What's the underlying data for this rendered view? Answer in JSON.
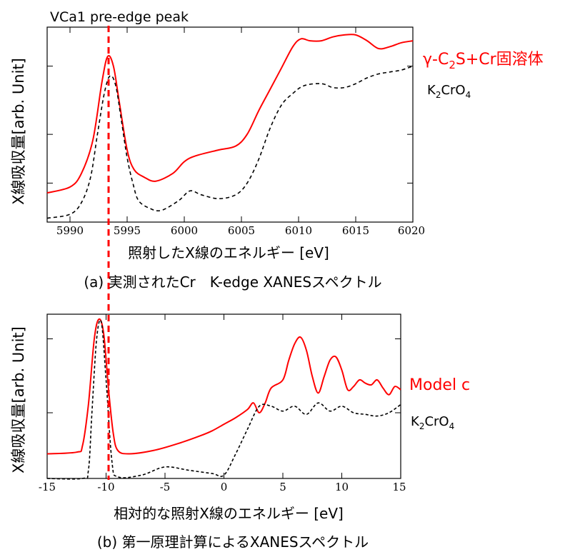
{
  "annotation": "VCa1 pre-edge peak",
  "chart_data": [
    {
      "type": "line",
      "caption": "(a) 実測されたCr　K-edge XANESスペクトル",
      "xlabel": "照射したX線のエネルギー [eV]",
      "ylabel": "X線吸収量[arb. Unit]",
      "xlim": [
        5988,
        6020
      ],
      "ylim": [
        0,
        1
      ],
      "xticks": [
        5990,
        5995,
        6000,
        6005,
        6010,
        6015,
        6020
      ],
      "grid": false,
      "series": [
        {
          "label_main": "γ-C",
          "label_sub": "2",
          "label_tail": "S+Cr固溶体",
          "color": "#ff0000",
          "style": "solid",
          "x": [
            5988,
            5990,
            5991,
            5992,
            5992.8,
            5993.3,
            5993.8,
            5994.3,
            5995,
            5995.6,
            5996.5,
            5997.5,
            5999,
            6000,
            6001,
            6003,
            6004.5,
            6005.5,
            6006.5,
            6007.5,
            6008.5,
            6009.5,
            6010.2,
            6011,
            6012,
            6013,
            6014,
            6015,
            6016,
            6017,
            6018,
            6019,
            6020
          ],
          "y": [
            0.15,
            0.18,
            0.25,
            0.42,
            0.72,
            0.85,
            0.8,
            0.62,
            0.37,
            0.27,
            0.23,
            0.21,
            0.25,
            0.31,
            0.34,
            0.37,
            0.39,
            0.45,
            0.57,
            0.68,
            0.79,
            0.9,
            0.94,
            0.93,
            0.93,
            0.95,
            0.96,
            0.96,
            0.93,
            0.89,
            0.9,
            0.92,
            0.93
          ]
        },
        {
          "label_main": "K",
          "label_sub": "2",
          "label_tail": "CrO",
          "label_sub2": "4",
          "color": "#000000",
          "style": "dashed",
          "x": [
            5988,
            5990,
            5991,
            5991.8,
            5992.4,
            5993,
            5993.5,
            5994,
            5994.5,
            5995,
            5995.5,
            5996,
            5997,
            5998,
            5999.5,
            6000.5,
            6001.5,
            6003,
            6004.5,
            6005.5,
            6006.5,
            6007.5,
            6008.5,
            6009.5,
            6010.5,
            6012,
            6013,
            6014,
            6015,
            6016,
            6017,
            6018,
            6019,
            6020
          ],
          "y": [
            0.02,
            0.04,
            0.1,
            0.23,
            0.45,
            0.66,
            0.75,
            0.7,
            0.52,
            0.33,
            0.2,
            0.11,
            0.07,
            0.06,
            0.11,
            0.16,
            0.14,
            0.12,
            0.14,
            0.2,
            0.32,
            0.48,
            0.6,
            0.66,
            0.7,
            0.71,
            0.69,
            0.69,
            0.71,
            0.74,
            0.76,
            0.77,
            0.78,
            0.8
          ]
        }
      ]
    },
    {
      "type": "line",
      "caption": "(b) 第一原理計算によるXANESスペクトル",
      "xlabel": "相対的な照射X線のエネルギー [eV]",
      "ylabel": "X線吸収量[arb. Unit]",
      "xlim": [
        -15,
        15
      ],
      "ylim": [
        0,
        1
      ],
      "xticks": [
        -15,
        -10,
        -5,
        0,
        5,
        10,
        15
      ],
      "grid": false,
      "series": [
        {
          "label_main": "Model c",
          "color": "#ff0000",
          "style": "solid",
          "x": [
            -15,
            -12.5,
            -12,
            -11.5,
            -11,
            -10.6,
            -10.2,
            -9.8,
            -9.4,
            -9,
            -8,
            -6,
            -4,
            -2,
            -1,
            0,
            1,
            2,
            2.5,
            3,
            3.5,
            4,
            5,
            5.5,
            6,
            6.5,
            7,
            7.5,
            8,
            8.5,
            9,
            9.5,
            10,
            10.5,
            11,
            11.5,
            12,
            12.5,
            13,
            13.5,
            14,
            14.5,
            15
          ],
          "y": [
            0.15,
            0.16,
            0.2,
            0.45,
            0.85,
            0.97,
            0.88,
            0.55,
            0.28,
            0.17,
            0.15,
            0.17,
            0.21,
            0.26,
            0.29,
            0.33,
            0.37,
            0.42,
            0.46,
            0.4,
            0.46,
            0.55,
            0.6,
            0.72,
            0.82,
            0.86,
            0.78,
            0.62,
            0.52,
            0.62,
            0.72,
            0.74,
            0.66,
            0.54,
            0.56,
            0.6,
            0.58,
            0.57,
            0.6,
            0.55,
            0.51,
            0.56,
            0.54
          ]
        },
        {
          "label_main": "K",
          "label_sub": "2",
          "label_tail": "CrO",
          "label_sub2": "4",
          "color": "#000000",
          "style": "dashed",
          "x": [
            -15,
            -12,
            -11.5,
            -11.2,
            -10.8,
            -10.4,
            -10,
            -9.5,
            -9,
            -7,
            -5,
            -3,
            -1,
            0,
            1,
            2,
            3,
            4,
            5,
            6,
            7,
            8,
            9,
            10,
            11,
            12,
            13,
            14,
            15
          ],
          "y": [
            0,
            0,
            0.05,
            0.4,
            0.85,
            0.95,
            0.6,
            0.1,
            0.01,
            0.02,
            0.07,
            0.05,
            0.03,
            0.02,
            0.15,
            0.3,
            0.44,
            0.44,
            0.41,
            0.44,
            0.39,
            0.46,
            0.41,
            0.44,
            0.4,
            0.39,
            0.38,
            0.4,
            0.45
          ]
        }
      ]
    }
  ]
}
